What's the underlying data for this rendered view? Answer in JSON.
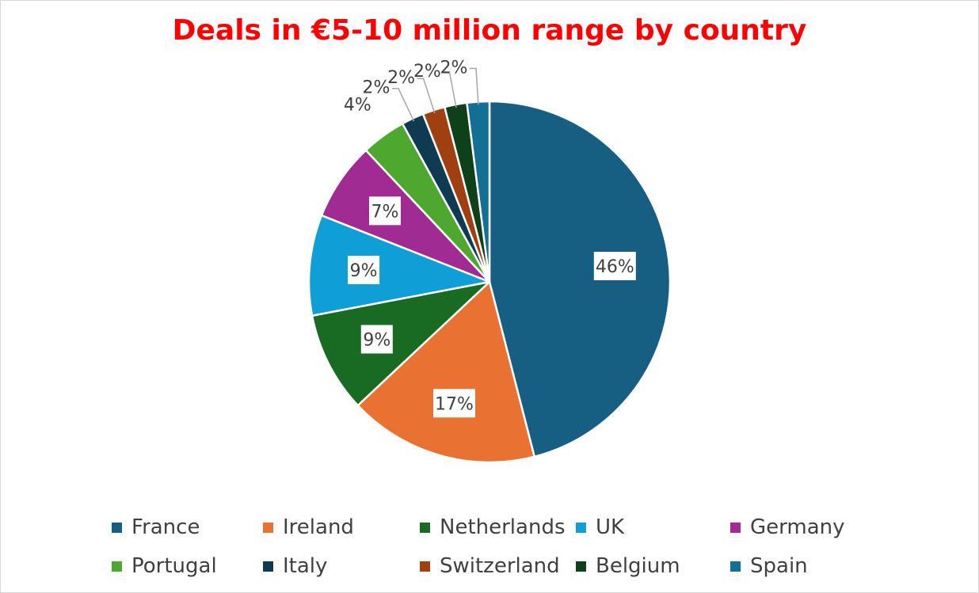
{
  "chart_data": {
    "type": "pie",
    "title": "Deals in €5-10 million range by country",
    "start_angle": "12 o'clock, clockwise",
    "categories": [
      "France",
      "Ireland",
      "Netherlands",
      "UK",
      "Germany",
      "Portugal",
      "Italy",
      "Switzerland",
      "Belgium",
      "Spain"
    ],
    "values": [
      46,
      17,
      9,
      9,
      7,
      4,
      2,
      2,
      2,
      2
    ],
    "data_labels": [
      "46%",
      "17%",
      "9%",
      "9%",
      "7%",
      "4%",
      "2%",
      "2%",
      "2%",
      "2%"
    ],
    "colors": [
      "#175f82",
      "#e97132",
      "#196b24",
      "#0f9ed5",
      "#a02b93",
      "#4ea72e",
      "#0e3a52",
      "#a04010",
      "#0e4019",
      "#136f94"
    ],
    "legend_position": "bottom"
  }
}
